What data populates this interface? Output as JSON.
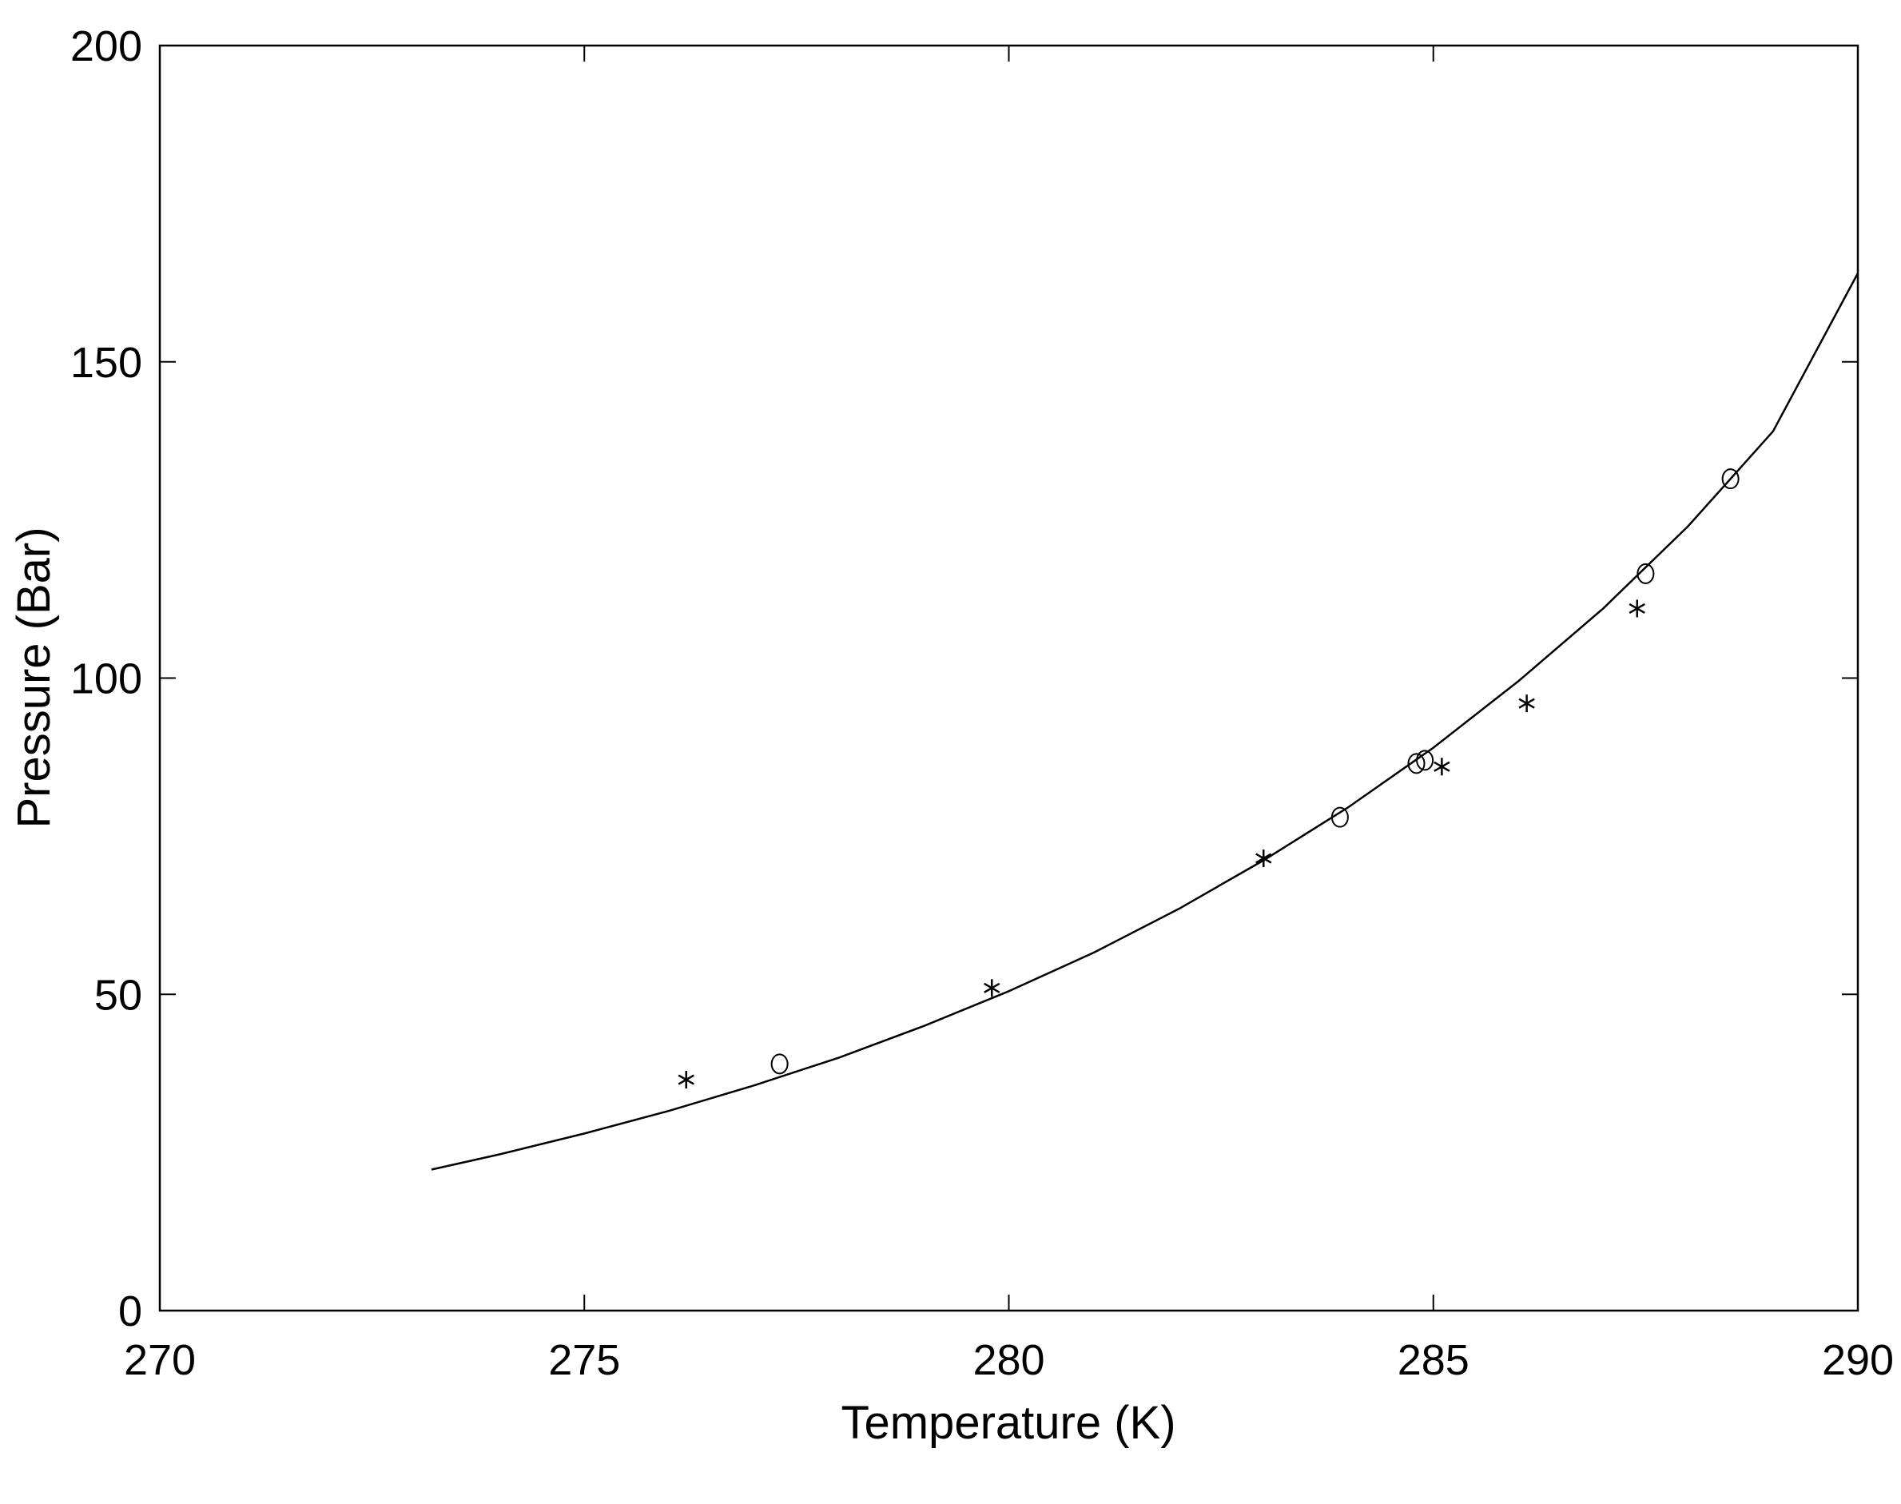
{
  "chart_data": {
    "type": "scatter",
    "title": "",
    "xlabel": "Temperature (K)",
    "ylabel": "Pressure (Bar)",
    "xlim": [
      270,
      290
    ],
    "ylim": [
      0,
      200
    ],
    "x_ticks": [
      270,
      275,
      280,
      285,
      290
    ],
    "y_ticks": [
      0,
      50,
      100,
      150,
      200
    ],
    "grid": false,
    "legend": "none",
    "series": [
      {
        "marker": "asterisk",
        "points": [
          [
            276.2,
            36.5
          ],
          [
            279.8,
            51.0
          ],
          [
            283.0,
            71.5
          ],
          [
            285.1,
            86.0
          ],
          [
            286.1,
            96.0
          ],
          [
            287.4,
            111.0
          ]
        ]
      },
      {
        "marker": "circle",
        "points": [
          [
            277.3,
            39.0
          ],
          [
            283.9,
            78.0
          ],
          [
            284.8,
            86.5
          ],
          [
            284.9,
            87.0
          ],
          [
            287.5,
            116.5
          ],
          [
            288.5,
            131.5
          ]
        ]
      },
      {
        "marker": "line",
        "points": [
          [
            273.2,
            22.3
          ],
          [
            274.0,
            24.7
          ],
          [
            275.0,
            28.0
          ],
          [
            276.0,
            31.6
          ],
          [
            277.0,
            35.6
          ],
          [
            278.0,
            40.0
          ],
          [
            279.0,
            45.0
          ],
          [
            280.0,
            50.5
          ],
          [
            281.0,
            56.6
          ],
          [
            282.0,
            63.5
          ],
          [
            283.0,
            71.2
          ],
          [
            284.0,
            79.6
          ],
          [
            285.0,
            89.0
          ],
          [
            286.0,
            99.5
          ],
          [
            287.0,
            111.0
          ],
          [
            288.0,
            124.0
          ],
          [
            289.0,
            139.0
          ],
          [
            290.0,
            164.0
          ]
        ]
      }
    ]
  }
}
